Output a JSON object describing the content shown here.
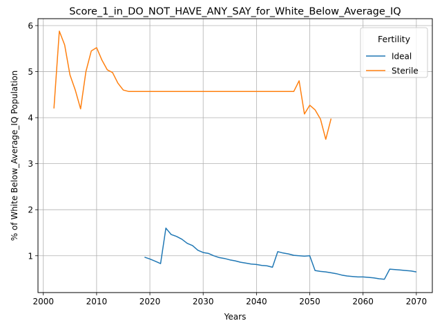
{
  "chart_data": {
    "type": "line",
    "title": "Score_1_in_DO_NOT_HAVE_ANY_SAY_for_White_Below_Average_IQ",
    "xlabel": "Years",
    "ylabel": "% of White Below_Average_IQ Population",
    "xlim": [
      1999,
      2073
    ],
    "ylim": [
      0.2,
      6.15
    ],
    "xticks": [
      2000,
      2010,
      2020,
      2030,
      2040,
      2050,
      2060,
      2070
    ],
    "yticks": [
      1,
      2,
      3,
      4,
      5,
      6
    ],
    "grid": true,
    "legend": {
      "title": "Fertility",
      "position": "top-right"
    },
    "series": [
      {
        "name": "Ideal",
        "color": "#1f77b4",
        "x": [
          2019,
          2020,
          2021,
          2022,
          2023,
          2024,
          2025,
          2026,
          2027,
          2028,
          2029,
          2030,
          2031,
          2032,
          2033,
          2034,
          2035,
          2036,
          2037,
          2038,
          2039,
          2040,
          2041,
          2042,
          2043,
          2044,
          2045,
          2046,
          2047,
          2048,
          2049,
          2050,
          2051,
          2052,
          2053,
          2054,
          2055,
          2056,
          2057,
          2058,
          2059,
          2060,
          2061,
          2062,
          2063,
          2064,
          2065,
          2066,
          2067,
          2068,
          2069,
          2070
        ],
        "values": [
          0.97,
          0.93,
          0.88,
          0.83,
          1.6,
          1.46,
          1.42,
          1.36,
          1.27,
          1.22,
          1.12,
          1.07,
          1.05,
          1.0,
          0.96,
          0.94,
          0.91,
          0.89,
          0.86,
          0.84,
          0.82,
          0.81,
          0.79,
          0.78,
          0.75,
          1.09,
          1.06,
          1.04,
          1.01,
          1.0,
          0.99,
          1.0,
          0.68,
          0.66,
          0.65,
          0.63,
          0.61,
          0.58,
          0.56,
          0.55,
          0.54,
          0.54,
          0.53,
          0.52,
          0.5,
          0.49,
          0.71,
          0.7,
          0.69,
          0.68,
          0.67,
          0.65
        ]
      },
      {
        "name": "Sterile",
        "color": "#ff7f0e",
        "x": [
          2002,
          2003,
          2004,
          2005,
          2006,
          2007,
          2008,
          2009,
          2010,
          2011,
          2012,
          2013,
          2014,
          2015,
          2016,
          2017,
          2018,
          2019,
          2020,
          2021,
          2022,
          2023,
          2024,
          2025,
          2026,
          2027,
          2028,
          2029,
          2030,
          2031,
          2032,
          2033,
          2034,
          2035,
          2036,
          2037,
          2038,
          2039,
          2040,
          2041,
          2042,
          2043,
          2044,
          2045,
          2046,
          2047,
          2048,
          2049,
          2050,
          2051,
          2052,
          2053,
          2054
        ],
        "values": [
          4.2,
          5.88,
          5.58,
          4.93,
          4.6,
          4.19,
          5.0,
          5.45,
          5.52,
          5.25,
          5.04,
          4.98,
          4.75,
          4.6,
          4.57,
          4.57,
          4.57,
          4.57,
          4.57,
          4.57,
          4.57,
          4.57,
          4.57,
          4.57,
          4.57,
          4.57,
          4.57,
          4.57,
          4.57,
          4.57,
          4.57,
          4.57,
          4.57,
          4.57,
          4.57,
          4.57,
          4.57,
          4.57,
          4.57,
          4.57,
          4.57,
          4.57,
          4.57,
          4.57,
          4.57,
          4.57,
          4.8,
          4.08,
          4.27,
          4.17,
          3.97,
          3.53,
          3.98
        ]
      }
    ]
  }
}
